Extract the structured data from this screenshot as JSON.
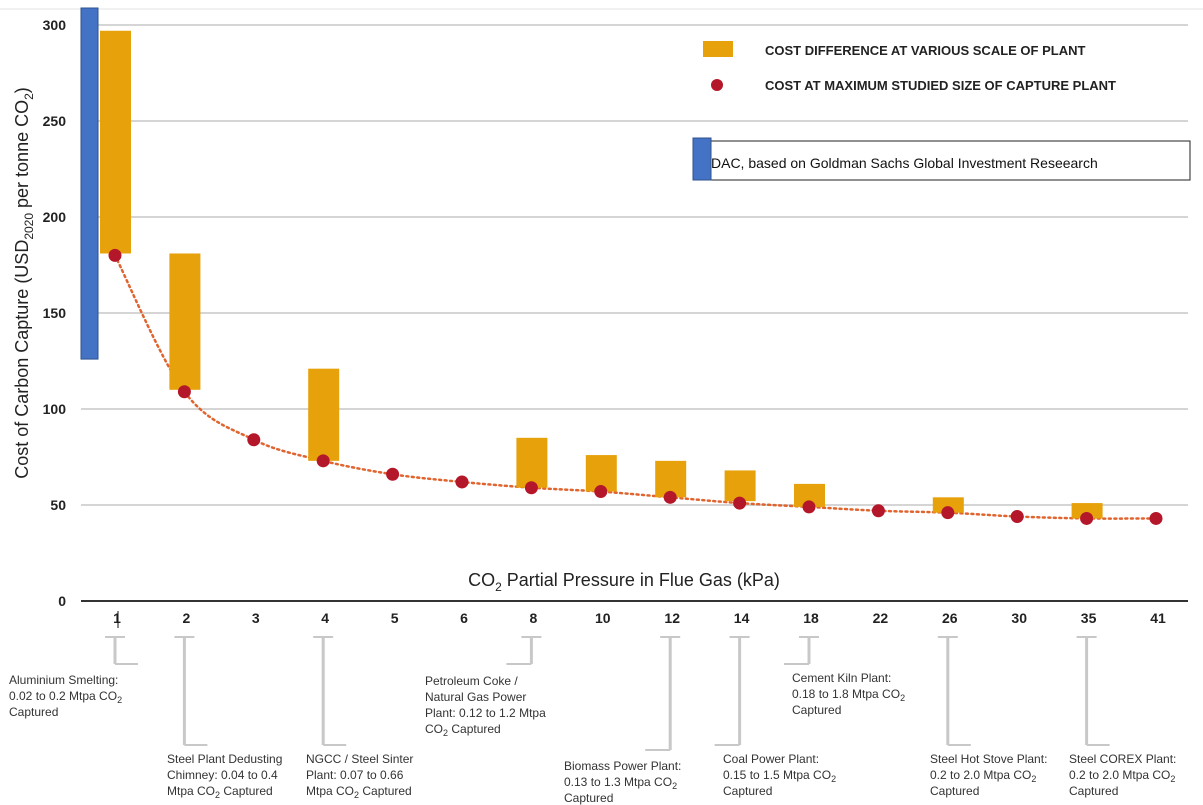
{
  "colors": {
    "range_bar": "#E7A10A",
    "max_point": "#B5172A",
    "trend": "#E0642F",
    "dac_bar": "#4472C4",
    "grid": "#D5D5D5",
    "axis": "#333333",
    "leader": "#C8C8C8"
  },
  "chart_data": {
    "type": "bar",
    "xlabel_main": "CO",
    "xlabel_sub": "2",
    "xlabel_rest": " Partial Pressure in Flue Gas (kPa)",
    "ylabel_main": "Cost of Carbon Capture (USD",
    "ylabel_sub": "2020",
    "ylabel_mid": " per tonne CO",
    "ylabel_sub2": "2",
    "ylabel_end": ")",
    "ylim": [
      0,
      300
    ],
    "yticks": [
      0,
      50,
      100,
      150,
      200,
      250,
      300
    ],
    "grid": true,
    "categories": [
      "1",
      "2",
      "3",
      "4",
      "5",
      "6",
      "8",
      "10",
      "12",
      "14",
      "18",
      "22",
      "26",
      "30",
      "35",
      "41"
    ],
    "series": [
      {
        "name": "COST DIFFERENCE AT VARIOUS SCALE OF PLANT",
        "kind": "floating-bar",
        "ranges": [
          [
            181,
            297
          ],
          [
            110,
            181
          ],
          null,
          [
            73,
            121
          ],
          null,
          null,
          [
            59,
            85
          ],
          [
            57,
            76
          ],
          [
            54,
            73
          ],
          [
            52,
            68
          ],
          [
            49,
            61
          ],
          null,
          [
            46,
            54
          ],
          null,
          [
            43,
            51
          ],
          null
        ]
      },
      {
        "name": "COST AT MAXIMUM STUDIED SIZE OF CAPTURE PLANT",
        "kind": "point",
        "values": [
          180,
          109,
          84,
          73,
          66,
          62,
          59,
          57,
          54,
          51,
          49,
          47,
          46,
          44,
          43,
          43
        ]
      }
    ],
    "dac": {
      "label": "DAC, based on Goldman Sachs Global Investment Reseearch",
      "range": [
        126,
        310
      ]
    },
    "annotations": [
      {
        "cat": 0,
        "lines": [
          [
            [
              "Aluminium Smelting:"
            ]
          ],
          [
            [
              "0.02 to 0.2 Mtpa CO"
            ],
            [
              "2",
              "sub"
            ]
          ],
          [
            [
              "Captured"
            ]
          ]
        ]
      },
      {
        "cat": 1,
        "lines": [
          [
            [
              "Steel Plant Dedusting"
            ]
          ],
          [
            [
              "Chimney: 0.04 to 0.4"
            ]
          ],
          [
            [
              "Mtpa CO"
            ],
            [
              "2",
              "sub"
            ],
            [
              " Captured"
            ]
          ]
        ]
      },
      {
        "cat": 3,
        "lines": [
          [
            [
              "NGCC / Steel Sinter"
            ]
          ],
          [
            [
              "Plant: 0.07 to 0.66"
            ]
          ],
          [
            [
              "Mtpa CO"
            ],
            [
              "2",
              "sub"
            ],
            [
              " Captured"
            ]
          ]
        ]
      },
      {
        "cat": 6,
        "lines": [
          [
            [
              "Petroleum Coke /"
            ]
          ],
          [
            [
              "Natural Gas Power"
            ]
          ],
          [
            [
              "Plant: 0.12 to 1.2 Mtpa"
            ]
          ],
          [
            [
              "CO"
            ],
            [
              "2",
              "sub"
            ],
            [
              " Captured"
            ]
          ]
        ]
      },
      {
        "cat": 8,
        "lines": [
          [
            [
              "Biomass Power Plant:"
            ]
          ],
          [
            [
              "0.13 to 1.3 Mtpa CO"
            ],
            [
              "2",
              "sub"
            ]
          ],
          [
            [
              "Captured"
            ]
          ]
        ]
      },
      {
        "cat": 9,
        "lines": [
          [
            [
              "Coal Power Plant:"
            ]
          ],
          [
            [
              "0.15 to 1.5 Mtpa CO"
            ],
            [
              "2",
              "sub"
            ]
          ],
          [
            [
              "Captured"
            ]
          ]
        ]
      },
      {
        "cat": 10,
        "lines": [
          [
            [
              "Cement Kiln Plant:"
            ]
          ],
          [
            [
              "0.18 to 1.8 Mtpa CO"
            ],
            [
              "2",
              "sub"
            ]
          ],
          [
            [
              "Captured"
            ]
          ]
        ]
      },
      {
        "cat": 12,
        "lines": [
          [
            [
              "Steel Hot Stove Plant:"
            ]
          ],
          [
            [
              "0.2 to 2.0 Mtpa CO"
            ],
            [
              "2",
              "sub"
            ]
          ],
          [
            [
              "Captured"
            ]
          ]
        ]
      },
      {
        "cat": 14,
        "lines": [
          [
            [
              "Steel COREX Plant:"
            ]
          ],
          [
            [
              "0.2 to 2.0 Mtpa CO"
            ],
            [
              "2",
              "sub"
            ]
          ],
          [
            [
              "Captured"
            ]
          ]
        ]
      }
    ]
  }
}
